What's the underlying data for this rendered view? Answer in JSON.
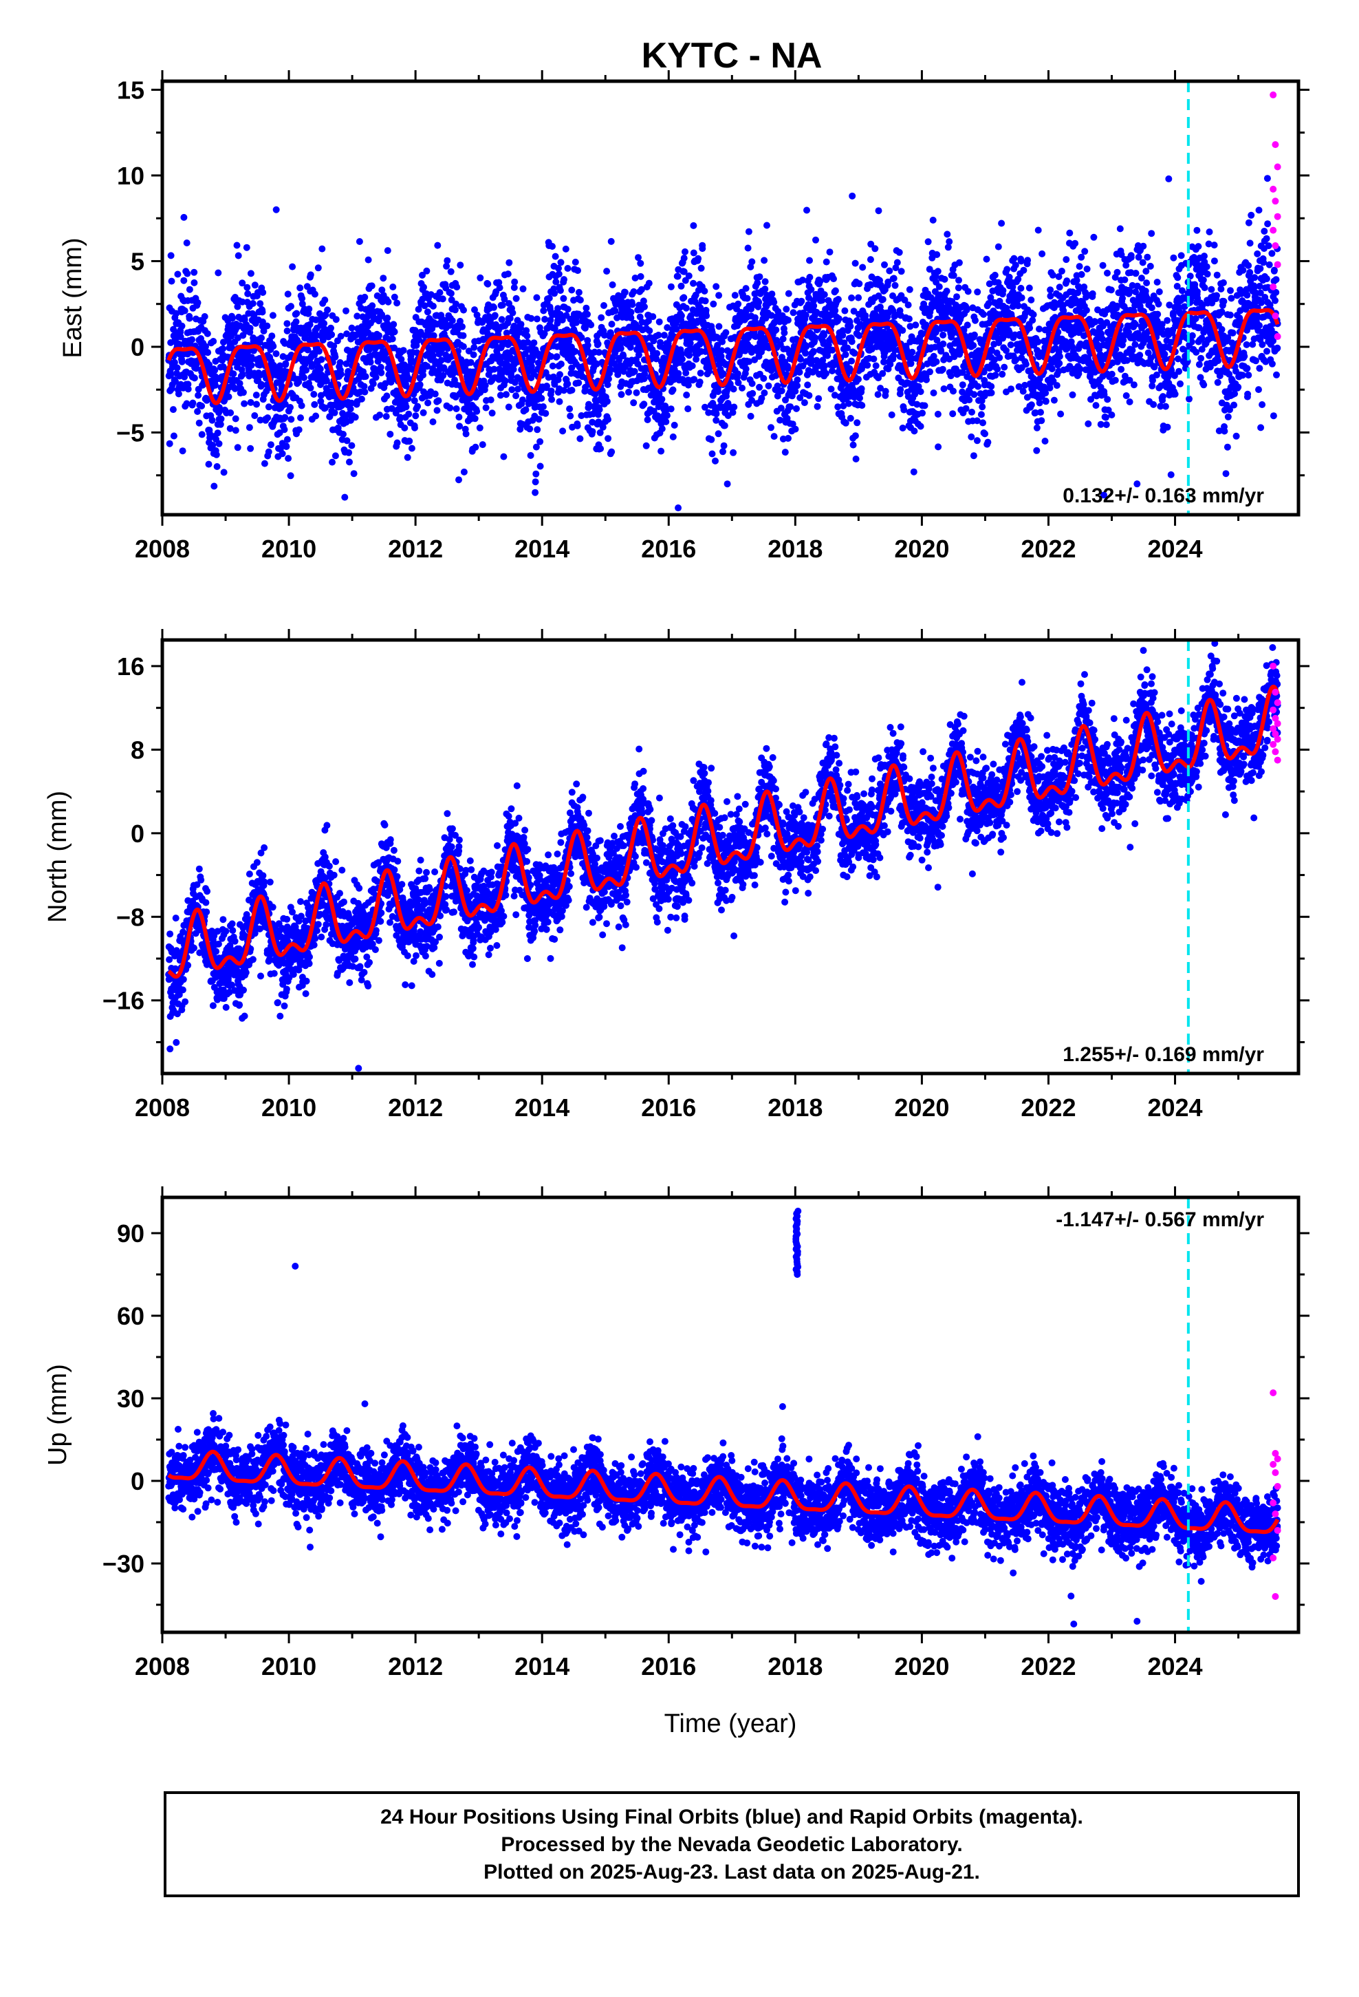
{
  "title": "KYTC - NA",
  "footer": {
    "line1": "24 Hour Positions Using Final Orbits (blue) and Rapid Orbits (magenta).",
    "line2": "Processed by the Nevada Geodetic Laboratory.",
    "line3": "Plotted on 2025-Aug-23. Last data on 2025-Aug-21."
  },
  "colors": {
    "final_orbits": "#0000ff",
    "rapid_orbits": "#ff00ff",
    "model_fit": "#ff0000",
    "equipment_change": "#00e5ee",
    "frame": "#000000"
  },
  "chart_data": [
    {
      "type": "scatter",
      "ylabel": "East (mm)",
      "xlabel": "",
      "xlim": [
        2008,
        2025.95
      ],
      "ylim": [
        -9.8,
        15.5
      ],
      "xticks": [
        2008,
        2010,
        2012,
        2014,
        2016,
        2018,
        2020,
        2022,
        2024
      ],
      "yticks": [
        -5,
        0,
        5,
        10,
        15
      ],
      "rate_label": "0.132+/- 0.163 mm/yr",
      "rate_position": "bottom-right",
      "equipment_change_year": 2024.21,
      "model": {
        "offset": -1.3,
        "trend": 0.132,
        "annual_amp": 1.6,
        "annual_phase": 0.35,
        "semiannual_amp": 0.5,
        "semiannual_phase": 0.1,
        "start": 2008.1,
        "end": 2025.62
      },
      "scatter_noise": 2.0,
      "outliers": [
        {
          "x": 2009.8,
          "y": 8.0
        },
        {
          "x": 2018.9,
          "y": 8.8
        },
        {
          "x": 2023.9,
          "y": 9.8
        },
        {
          "x": 2016.15,
          "y": -9.4
        },
        {
          "x": 2011.6,
          "y": -5.1
        },
        {
          "x": 2023.4,
          "y": -8.0
        }
      ],
      "rapid_points": {
        "x_start": 2025.55,
        "x_end": 2025.62,
        "values": [
          14.7,
          11.8,
          10.5,
          9.2,
          8.5,
          7.6,
          6.8,
          5.9,
          4.8,
          3.5,
          1.8,
          0.6
        ]
      }
    },
    {
      "type": "scatter",
      "ylabel": "North (mm)",
      "xlabel": "",
      "xlim": [
        2008,
        2025.95
      ],
      "ylim": [
        -23,
        18.5
      ],
      "xticks": [
        2008,
        2010,
        2012,
        2014,
        2016,
        2018,
        2020,
        2022,
        2024
      ],
      "yticks": [
        -16,
        -8,
        0,
        8,
        16
      ],
      "rate_label": "1.255+/- 0.169 mm/yr",
      "rate_position": "bottom-right",
      "equipment_change_year": 2024.21,
      "model": {
        "offset": -12.0,
        "trend": 1.255,
        "annual_amp": 2.6,
        "annual_phase": 0.55,
        "semiannual_amp": 1.4,
        "semiannual_phase": 0.55,
        "start": 2008.1,
        "end": 2025.62
      },
      "scatter_noise": 2.0,
      "outliers": [
        {
          "x": 2011.1,
          "y": -22.5
        },
        {
          "x": 2023.5,
          "y": 17.5
        },
        {
          "x": 2009.3,
          "y": -17.5
        }
      ],
      "rapid_points": {
        "x_start": 2025.55,
        "x_end": 2025.62,
        "values": [
          16.0,
          13.5,
          12.5,
          11.8,
          11.0,
          10.5,
          10.0,
          9.5,
          9.0,
          8.5,
          7.8,
          7.0
        ]
      }
    },
    {
      "type": "scatter",
      "ylabel": "Up (mm)",
      "xlabel": "Time (year)",
      "xlim": [
        2008,
        2025.95
      ],
      "ylim": [
        -55,
        103
      ],
      "xticks": [
        2008,
        2010,
        2012,
        2014,
        2016,
        2018,
        2020,
        2022,
        2024
      ],
      "yticks": [
        -30,
        0,
        30,
        60,
        90
      ],
      "rate_label": "-1.147+/- 0.567 mm/yr",
      "rate_position": "top-right",
      "equipment_change_year": 2024.21,
      "model": {
        "offset": 5.0,
        "trend": -1.147,
        "annual_amp": 5.0,
        "annual_phase": 0.8,
        "semiannual_amp": 1.5,
        "semiannual_phase": 0.3,
        "start": 2008.1,
        "end": 2025.62
      },
      "scatter_noise": 6.0,
      "outliers": [
        {
          "x": 2010.1,
          "y": 78
        },
        {
          "x": 2022.4,
          "y": -52
        },
        {
          "x": 2023.4,
          "y": -51
        },
        {
          "x": 2011.2,
          "y": 28
        },
        {
          "x": 2017.8,
          "y": 27
        }
      ],
      "cluster": {
        "x": 2018.03,
        "y_min": 75,
        "y_max": 98,
        "count": 26
      },
      "rapid_points": {
        "x_start": 2025.55,
        "x_end": 2025.62,
        "values": [
          32,
          10,
          8,
          6,
          3,
          -2,
          -8,
          -12,
          -18,
          -28,
          -42
        ]
      }
    }
  ]
}
